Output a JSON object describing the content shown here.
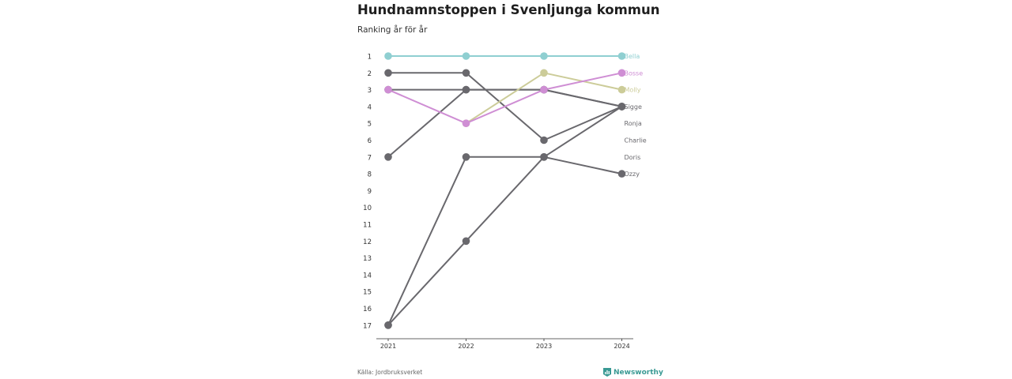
{
  "title": "Hundnamnstoppen i Svenljunga kommun",
  "subtitle": "Ranking år för år",
  "source": "Källa: Jordbruksverket",
  "brand": "Newsworthy",
  "brand_icon": "newsworthy-logo-icon",
  "colors": {
    "Bella": "#8fcfd1",
    "Bosse": "#cf8ed4",
    "Molly": "#cccc99",
    "default": "#69686d"
  },
  "chart_data": {
    "type": "line",
    "x": [
      "2021",
      "2022",
      "2023",
      "2024"
    ],
    "y_ticks": [
      1,
      2,
      3,
      4,
      5,
      6,
      7,
      8,
      9,
      10,
      11,
      12,
      13,
      14,
      15,
      16,
      17
    ],
    "ylim": [
      1,
      17
    ],
    "y_reversed": true,
    "grid": false,
    "series": [
      {
        "name": "Ozzy",
        "values": [
          17,
          12,
          7,
          8
        ]
      },
      {
        "name": "Doris",
        "values": [
          17,
          7,
          7,
          4
        ]
      },
      {
        "name": "Charlie",
        "values": [
          7,
          3,
          3,
          4
        ]
      },
      {
        "name": "Ronja",
        "values": [
          2,
          2,
          6,
          4
        ]
      },
      {
        "name": "Sigge",
        "values": [
          3,
          3,
          3,
          4
        ]
      },
      {
        "name": "Molly",
        "values": [
          null,
          5,
          2,
          3
        ]
      },
      {
        "name": "Bosse",
        "values": [
          3,
          5,
          3,
          2
        ]
      },
      {
        "name": "Bella",
        "values": [
          1,
          1,
          1,
          1
        ]
      }
    ],
    "labels": [
      {
        "name": "Bella",
        "rank": 1
      },
      {
        "name": "Bosse",
        "rank": 2
      },
      {
        "name": "Molly",
        "rank": 3
      },
      {
        "name": "Sigge",
        "rank": 4
      },
      {
        "name": "Ronja",
        "rank": 5
      },
      {
        "name": "Charlie",
        "rank": 6
      },
      {
        "name": "Doris",
        "rank": 7
      },
      {
        "name": "Ozzy",
        "rank": 8
      }
    ]
  }
}
